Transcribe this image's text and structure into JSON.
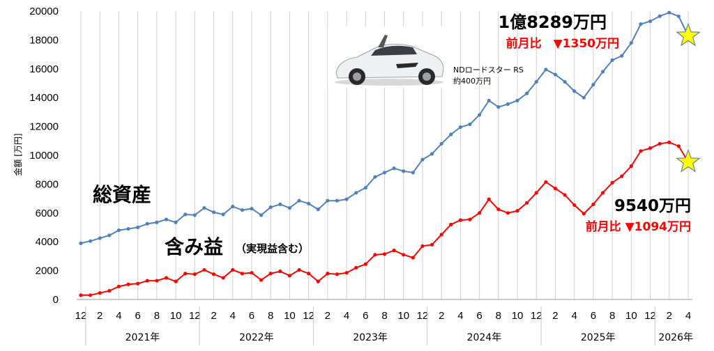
{
  "chart_data": {
    "type": "line",
    "ylabel": "金額 [万円]",
    "ylim": [
      0,
      20000
    ],
    "yticks": [
      0,
      2000,
      4000,
      6000,
      8000,
      10000,
      12000,
      14000,
      16000,
      18000,
      20000
    ],
    "grid": "vertical",
    "month_tick_labels": [
      "12",
      "2",
      "4",
      "6",
      "8",
      "10",
      "12",
      "2",
      "4",
      "6",
      "8",
      "10",
      "12",
      "2",
      "4",
      "6",
      "8",
      "10",
      "12",
      "2",
      "4",
      "6",
      "8",
      "10",
      "12",
      "2",
      "4",
      "6",
      "8",
      "10",
      "12",
      "2",
      "4"
    ],
    "years": [
      "2021年",
      "2022年",
      "2023年",
      "2024年",
      "2025年",
      "2026年"
    ],
    "series": [
      {
        "name": "総資産",
        "color": "#4f81bd",
        "values": [
          3900,
          4050,
          4250,
          4450,
          4800,
          4900,
          5000,
          5250,
          5350,
          5550,
          5350,
          5900,
          5850,
          6350,
          6050,
          5900,
          6450,
          6200,
          6300,
          5850,
          6400,
          6600,
          6350,
          6850,
          6650,
          6250,
          6850,
          6850,
          6950,
          7400,
          7750,
          8500,
          8800,
          9100,
          8900,
          8800,
          9700,
          10100,
          10800,
          11450,
          11950,
          12150,
          12800,
          13800,
          13350,
          13550,
          13800,
          14300,
          15100,
          15950,
          15600,
          15100,
          14450,
          14000,
          14900,
          15800,
          16600,
          16900,
          17800,
          19100,
          19300,
          19650,
          19900,
          19639,
          18289
        ]
      },
      {
        "name": "含み益",
        "color": "#ff0000",
        "values": [
          300,
          300,
          450,
          600,
          900,
          1050,
          1100,
          1300,
          1300,
          1500,
          1250,
          1800,
          1750,
          2050,
          1750,
          1500,
          2050,
          1800,
          1850,
          1350,
          1800,
          1950,
          1650,
          2050,
          1800,
          1250,
          1800,
          1750,
          1850,
          2200,
          2450,
          3100,
          3150,
          3400,
          3100,
          2900,
          3700,
          3800,
          4500,
          5200,
          5500,
          5550,
          6000,
          6950,
          6250,
          6000,
          6150,
          6700,
          7400,
          8150,
          7700,
          7250,
          6550,
          5950,
          6600,
          7400,
          8100,
          8550,
          9250,
          10300,
          10500,
          10800,
          10900,
          10634,
          9540
        ]
      }
    ],
    "annotations": {
      "asset_total": "1億8289万円",
      "asset_change": "前月比　▼1350万円",
      "gain_total": "9540万円",
      "gain_change": "前月比 ▼1094万円",
      "label_asset": "総資産",
      "label_gain": "含み益",
      "label_gain_note": "（実現益含む）",
      "car_name": "NDロードスター RS",
      "car_price": "約400万円"
    }
  }
}
